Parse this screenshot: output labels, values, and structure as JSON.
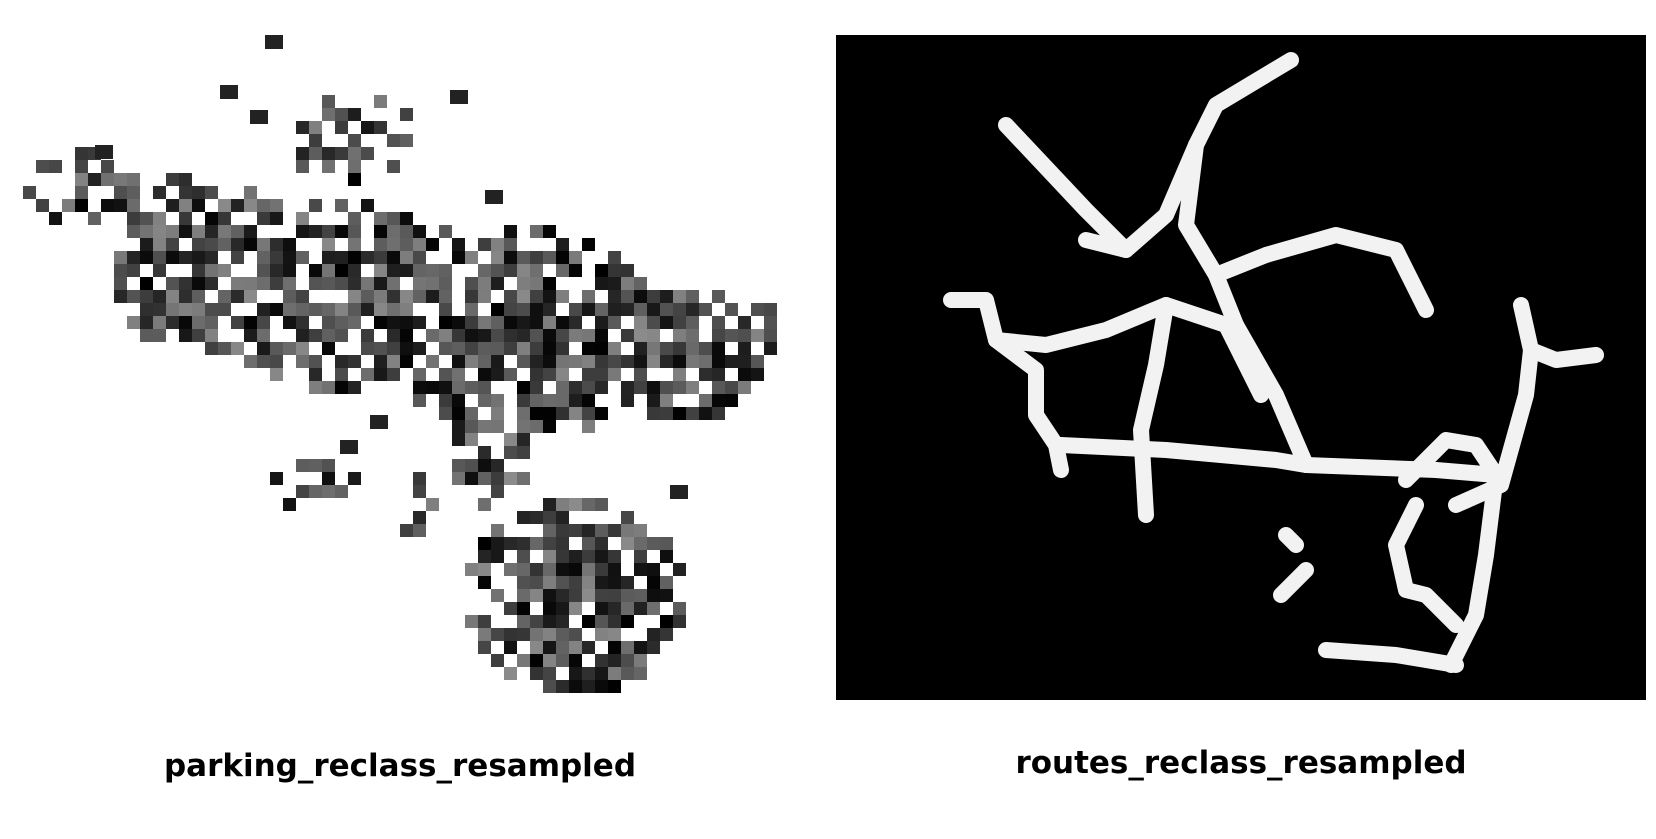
{
  "panels": [
    {
      "id": "parking",
      "title": "parking_reclass_resampled",
      "raster_style": "dark cells on white",
      "background": "#ffffff",
      "foreground": "#000000"
    },
    {
      "id": "routes",
      "title": "routes_reclass_resampled",
      "raster_style": "light lines on black",
      "background": "#000000",
      "foreground": "#ffffff"
    }
  ]
}
